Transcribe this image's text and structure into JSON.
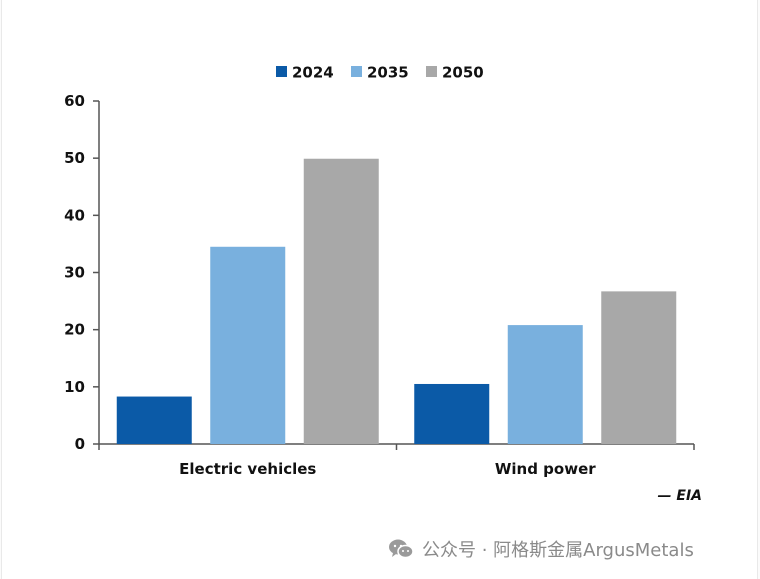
{
  "chart_data": {
    "type": "bar",
    "categories": [
      "Electric vehicles",
      "Wind power"
    ],
    "series": [
      {
        "name": "2024",
        "color": "#0b5aa7",
        "values": [
          8.3,
          10.5
        ]
      },
      {
        "name": "2035",
        "color": "#79b0de",
        "values": [
          34.5,
          20.8
        ]
      },
      {
        "name": "2050",
        "color": "#a8a8a8",
        "values": [
          49.9,
          26.7
        ]
      }
    ],
    "ylim": [
      0,
      60
    ],
    "yticks": [
      0,
      10,
      20,
      30,
      40,
      50,
      60
    ],
    "grid": false,
    "legend_position": "top-center",
    "source": "— EIA"
  },
  "watermark": {
    "icon": "wechat-icon",
    "text": "公众号 · 阿格斯金属ArgusMetals"
  }
}
